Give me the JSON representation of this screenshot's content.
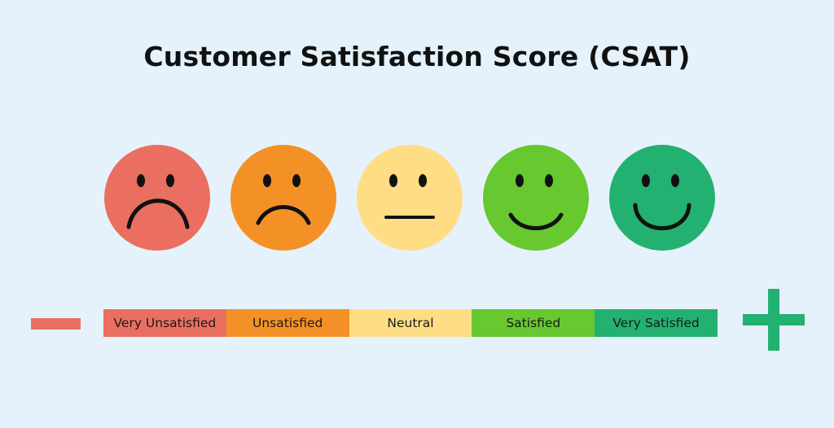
{
  "title": "Customer Satisfaction Score (CSAT)",
  "scale": [
    {
      "label": "Very Unsatisfied",
      "face_icon": "very-unsatisfied-face-icon",
      "color": "#ea6f61",
      "mouth": "deep-frown"
    },
    {
      "label": "Unsatisfied",
      "face_icon": "unsatisfied-face-icon",
      "color": "#f49126",
      "mouth": "frown"
    },
    {
      "label": "Neutral",
      "face_icon": "neutral-face-icon",
      "color": "#fedd85",
      "mouth": "flat"
    },
    {
      "label": "Satisfied",
      "face_icon": "satisfied-face-icon",
      "color": "#67c82f",
      "mouth": "smile"
    },
    {
      "label": "Very Satisfied",
      "face_icon": "very-satisfied-face-icon",
      "color": "#23b171",
      "mouth": "big-smile"
    }
  ],
  "negative_end": {
    "icon": "minus-icon",
    "color": "#ea6f61"
  },
  "positive_end": {
    "icon": "plus-icon",
    "color": "#23b171"
  }
}
